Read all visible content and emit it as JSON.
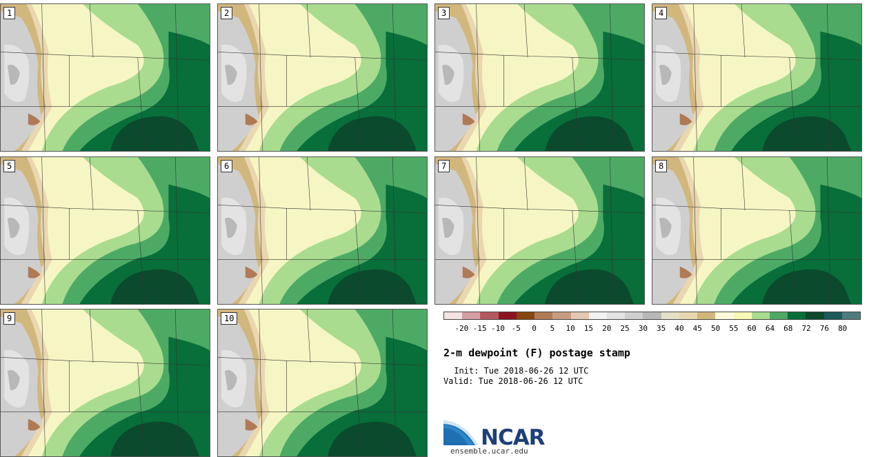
{
  "title": "2-m dewpoint (F) postage stamp",
  "init_line": " Init: Tue 2018-06-26 12 UTC",
  "valid_line": "Valid: Tue 2018-06-26 12 UTC",
  "logo_text": "NCAR",
  "site": "ensemble.ucar.edu",
  "members": [
    "1",
    "2",
    "3",
    "4",
    "5",
    "6",
    "7",
    "8",
    "9",
    "10"
  ],
  "colorbar": {
    "ticks": [
      "-20",
      "-15",
      "-10",
      "-5",
      "0",
      "5",
      "10",
      "15",
      "20",
      "25",
      "30",
      "35",
      "40",
      "45",
      "50",
      "55",
      "60",
      "64",
      "68",
      "72",
      "76",
      "80"
    ],
    "colors": [
      "#f3e3e3",
      "#d49ea2",
      "#b4585f",
      "#8b1420",
      "#87460f",
      "#b07a55",
      "#c89c80",
      "#e4c7b0",
      "#f3f3f3",
      "#e3e3e3",
      "#cfcfcf",
      "#b8b8b8",
      "#e5e1c9",
      "#e8d7b0",
      "#d2b77c",
      "#fffbdb",
      "#f7f9b6",
      "#a9dc8f",
      "#4daa65",
      "#086e3a",
      "#0b4a2d",
      "#1c5a5a",
      "#4e7c7e"
    ]
  }
}
